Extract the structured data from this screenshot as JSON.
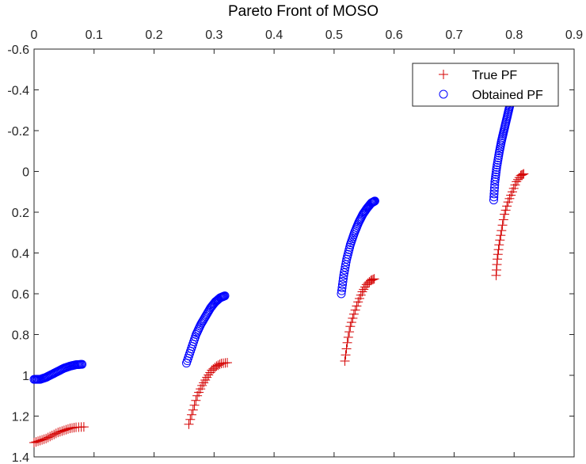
{
  "chart_data": {
    "type": "scatter",
    "title": "Pareto Front of MOSO",
    "xlabel": "",
    "ylabel": "",
    "x_axis_location": "top",
    "y_axis_direction": "reverse",
    "xlim": [
      0,
      0.9
    ],
    "ylim": [
      -0.6,
      1.4
    ],
    "x_ticks": [
      0,
      0.1,
      0.2,
      0.3,
      0.4,
      0.5,
      0.6,
      0.7,
      0.8,
      0.9
    ],
    "x_tick_labels": [
      "0",
      "0.1",
      "0.2",
      "0.3",
      "0.4",
      "0.5",
      "0.6",
      "0.7",
      "0.8",
      "0.9"
    ],
    "y_ticks": [
      -0.6,
      -0.4,
      -0.2,
      0,
      0.2,
      0.4,
      0.6,
      0.8,
      1,
      1.2,
      1.4
    ],
    "y_tick_labels": [
      "-0.6",
      "-0.4",
      "-0.2",
      "0",
      "0.2",
      "0.4",
      "0.6",
      "0.8",
      "1",
      "1.2",
      "1.4"
    ],
    "grid": false,
    "box": true,
    "legend": {
      "position": "top-right",
      "entries": [
        {
          "label": "True PF",
          "marker": "plus",
          "color": "#d40000"
        },
        {
          "label": "Obtained PF",
          "marker": "circle",
          "color": "#0000ff"
        }
      ]
    },
    "series": [
      {
        "name": "True PF",
        "marker": "plus",
        "color": "#d40000",
        "segments": [
          {
            "x": [
              0.0,
              0.01,
              0.02,
              0.03,
              0.04,
              0.05,
              0.06,
              0.07,
              0.083
            ],
            "y": [
              1.33,
              1.32,
              1.31,
              1.295,
              1.28,
              1.27,
              1.26,
              1.255,
              1.253
            ]
          },
          {
            "x": [
              0.258,
              0.265,
              0.272,
              0.28,
              0.288,
              0.296,
              0.304,
              0.312,
              0.322
            ],
            "y": [
              1.24,
              1.17,
              1.1,
              1.05,
              1.01,
              0.975,
              0.955,
              0.942,
              0.938
            ]
          },
          {
            "x": [
              0.518,
              0.522,
              0.527,
              0.533,
              0.54,
              0.547,
              0.554,
              0.561,
              0.567
            ],
            "y": [
              0.93,
              0.84,
              0.76,
              0.7,
              0.64,
              0.59,
              0.555,
              0.535,
              0.527
            ]
          },
          {
            "x": [
              0.77,
              0.772,
              0.775,
              0.779,
              0.784,
              0.79,
              0.797,
              0.804,
              0.811,
              0.816
            ],
            "y": [
              0.51,
              0.43,
              0.36,
              0.29,
              0.21,
              0.15,
              0.1,
              0.05,
              0.02,
              0.012
            ]
          }
        ]
      },
      {
        "name": "Obtained PF",
        "marker": "circle",
        "color": "#0000ff",
        "segments": [
          {
            "x": [
              0.0,
              0.01,
              0.02,
              0.03,
              0.04,
              0.05,
              0.06,
              0.07,
              0.08
            ],
            "y": [
              1.02,
              1.02,
              1.01,
              0.995,
              0.98,
              0.965,
              0.955,
              0.948,
              0.946
            ]
          },
          {
            "x": [
              0.254,
              0.262,
              0.27,
              0.278,
              0.286,
              0.294,
              0.302,
              0.31,
              0.318
            ],
            "y": [
              0.94,
              0.87,
              0.8,
              0.75,
              0.71,
              0.67,
              0.64,
              0.62,
              0.61
            ]
          },
          {
            "x": [
              0.512,
              0.516,
              0.521,
              0.527,
              0.534,
              0.541,
              0.548,
              0.555,
              0.562,
              0.568
            ],
            "y": [
              0.6,
              0.51,
              0.43,
              0.36,
              0.3,
              0.25,
              0.21,
              0.18,
              0.155,
              0.145
            ]
          },
          {
            "x": [
              0.766,
              0.768,
              0.771,
              0.775,
              0.779,
              0.783,
              0.787,
              0.791,
              0.795,
              0.798
            ],
            "y": [
              0.14,
              0.05,
              -0.02,
              -0.09,
              -0.15,
              -0.2,
              -0.25,
              -0.3,
              -0.35,
              -0.38
            ]
          }
        ]
      }
    ]
  }
}
